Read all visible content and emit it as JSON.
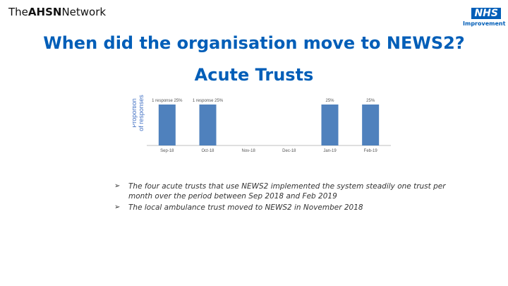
{
  "header": {
    "brand_prefix": "The",
    "brand_bold": "AHSN",
    "brand_suffix": "Network",
    "logo_badge": "NHS",
    "logo_sub": "Improvement"
  },
  "title": "When did the organisation move to NEWS2?",
  "subtitle": "Acute Trusts",
  "chart_data": {
    "type": "bar",
    "ylabel": "Proportion of responses",
    "categories": [
      "Sep-18",
      "Oct-18",
      "Nov-18",
      "Dec-18",
      "Jan-19",
      "Feb-19"
    ],
    "values": [
      25,
      25,
      0,
      0,
      25,
      25
    ],
    "data_labels": [
      "1 response 25%",
      "1 response 25%",
      "",
      "",
      "25%",
      "25%"
    ],
    "bar_color": "#4f81bd",
    "ylim": [
      0,
      25
    ],
    "grid": false
  },
  "bullets": [
    "The four acute trusts that use NEWS2 implemented the system steadily one trust per month over the period between Sep 2018 and Feb 2019",
    "The local ambulance trust moved to NEWS2 in November 2018"
  ],
  "bullet_marker": "➢"
}
